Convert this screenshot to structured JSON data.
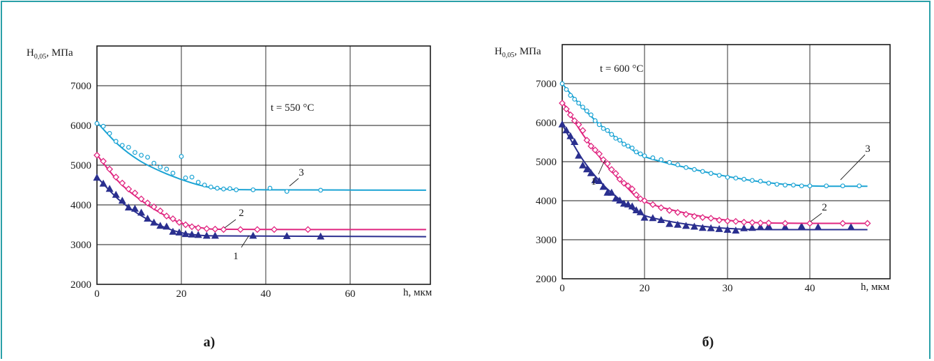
{
  "chart_data": [
    {
      "type": "scatter",
      "panel_label": "а)",
      "ylabel_main": "H",
      "ylabel_sub": "0,05",
      "ylabel_unit": ", МПа",
      "xlabel": "h, мкм",
      "annotation": "t = 550 °C",
      "xlim": [
        0,
        80
      ],
      "ylim": [
        2000,
        8000
      ],
      "x_ticks": [
        "0",
        "20",
        "40",
        "60"
      ],
      "y_ticks": [
        "2000",
        "3000",
        "4000",
        "5000",
        "6000",
        "7000"
      ],
      "grid": true,
      "series": [
        {
          "name": "1",
          "marker": "triangle",
          "color": "#2a2f8f",
          "points": [
            [
              0,
              4680
            ],
            [
              1.5,
              4530
            ],
            [
              3,
              4400
            ],
            [
              4.5,
              4250
            ],
            [
              6,
              4100
            ],
            [
              7.5,
              3930
            ],
            [
              9,
              3900
            ],
            [
              10.5,
              3800
            ],
            [
              12,
              3650
            ],
            [
              13.5,
              3550
            ],
            [
              15,
              3470
            ],
            [
              16.5,
              3450
            ],
            [
              18,
              3320
            ],
            [
              19.5,
              3300
            ],
            [
              21,
              3260
            ],
            [
              22.5,
              3250
            ],
            [
              24,
              3240
            ],
            [
              26,
              3220
            ],
            [
              28,
              3220
            ],
            [
              37,
              3220
            ],
            [
              45,
              3210
            ],
            [
              53,
              3200
            ]
          ],
          "curve": [
            [
              0,
              4700
            ],
            [
              5,
              4150
            ],
            [
              10,
              3760
            ],
            [
              15,
              3480
            ],
            [
              20,
              3300
            ],
            [
              25,
              3230
            ],
            [
              30,
              3220
            ],
            [
              50,
              3210
            ],
            [
              78,
              3200
            ]
          ]
        },
        {
          "name": "2",
          "marker": "diamond",
          "color": "#e0247f",
          "points": [
            [
              0,
              5250
            ],
            [
              1.5,
              5100
            ],
            [
              3,
              4900
            ],
            [
              4.5,
              4700
            ],
            [
              6,
              4550
            ],
            [
              7.5,
              4400
            ],
            [
              9,
              4300
            ],
            [
              10.5,
              4150
            ],
            [
              12,
              4050
            ],
            [
              13.5,
              3950
            ],
            [
              15,
              3850
            ],
            [
              16.5,
              3720
            ],
            [
              18,
              3650
            ],
            [
              19.5,
              3560
            ],
            [
              21,
              3500
            ],
            [
              22.5,
              3450
            ],
            [
              24,
              3420
            ],
            [
              26,
              3400
            ],
            [
              28,
              3390
            ],
            [
              30,
              3380
            ],
            [
              34,
              3380
            ],
            [
              38,
              3380
            ],
            [
              42,
              3380
            ],
            [
              50,
              3380
            ]
          ],
          "curve": [
            [
              0,
              5260
            ],
            [
              5,
              4600
            ],
            [
              10,
              4150
            ],
            [
              15,
              3800
            ],
            [
              20,
              3540
            ],
            [
              25,
              3420
            ],
            [
              30,
              3385
            ],
            [
              50,
              3380
            ],
            [
              78,
              3380
            ]
          ]
        },
        {
          "name": "3",
          "marker": "circle",
          "color": "#1aa3d4",
          "points": [
            [
              0,
              6050
            ],
            [
              1.5,
              5980
            ],
            [
              3,
              5800
            ],
            [
              4.5,
              5600
            ],
            [
              6,
              5500
            ],
            [
              7.5,
              5450
            ],
            [
              9,
              5320
            ],
            [
              10.5,
              5250
            ],
            [
              12,
              5200
            ],
            [
              13.5,
              5050
            ],
            [
              15,
              4950
            ],
            [
              16.5,
              4900
            ],
            [
              18,
              4800
            ],
            [
              20,
              5220
            ],
            [
              21,
              4680
            ],
            [
              22.5,
              4700
            ],
            [
              24,
              4570
            ],
            [
              25.5,
              4500
            ],
            [
              27,
              4450
            ],
            [
              28.5,
              4420
            ],
            [
              30,
              4400
            ],
            [
              31.5,
              4410
            ],
            [
              33,
              4380
            ],
            [
              37,
              4380
            ],
            [
              41,
              4420
            ],
            [
              45,
              4340
            ],
            [
              53,
              4370
            ]
          ],
          "curve": [
            [
              0,
              6080
            ],
            [
              5,
              5520
            ],
            [
              10,
              5120
            ],
            [
              15,
              4850
            ],
            [
              20,
              4640
            ],
            [
              25,
              4480
            ],
            [
              30,
              4400
            ],
            [
              40,
              4380
            ],
            [
              78,
              4370
            ]
          ]
        }
      ],
      "curve_labels": [
        "1",
        "2",
        "3"
      ]
    },
    {
      "type": "scatter",
      "panel_label": "б)",
      "ylabel_main": "H",
      "ylabel_sub": "0,05",
      "ylabel_unit": ", МПа",
      "xlabel": "h, мкм",
      "annotation": "t = 600 °C",
      "xlim": [
        0,
        50
      ],
      "ylim": [
        2000,
        7000
      ],
      "x_ticks": [
        "0",
        "20",
        "30",
        "40"
      ],
      "y_ticks": [
        "2000",
        "3000",
        "4000",
        "5000",
        "6000",
        "7000"
      ],
      "grid": true,
      "series": [
        {
          "name": "1",
          "marker": "triangle",
          "color": "#2a2f8f",
          "points": [
            [
              0,
              5950
            ],
            [
              1,
              5800
            ],
            [
              2,
              5650
            ],
            [
              3,
              5500
            ],
            [
              4,
              5150
            ],
            [
              5,
              4900
            ],
            [
              6,
              4800
            ],
            [
              7,
              4700
            ],
            [
              8,
              4520
            ],
            [
              9,
              4500
            ],
            [
              10,
              4350
            ],
            [
              11,
              4200
            ],
            [
              12,
              4200
            ],
            [
              13,
              4050
            ],
            [
              14,
              4000
            ],
            [
              15,
              3920
            ],
            [
              16,
              3900
            ],
            [
              17,
              3850
            ],
            [
              18,
              3750
            ],
            [
              19,
              3700
            ],
            [
              20,
              3560
            ],
            [
              21,
              3550
            ],
            [
              22,
              3500
            ],
            [
              23,
              3400
            ],
            [
              24,
              3380
            ],
            [
              25,
              3350
            ],
            [
              26,
              3330
            ],
            [
              27,
              3300
            ],
            [
              28,
              3290
            ],
            [
              29,
              3270
            ],
            [
              30,
              3250
            ],
            [
              31,
              3230
            ],
            [
              32,
              3290
            ],
            [
              33,
              3300
            ],
            [
              34,
              3320
            ],
            [
              35,
              3340
            ],
            [
              37,
              3320
            ],
            [
              39,
              3340
            ],
            [
              41,
              3320
            ],
            [
              45,
              3320
            ]
          ],
          "curve": [
            [
              0,
              5950
            ],
            [
              5,
              5050
            ],
            [
              10,
              4400
            ],
            [
              15,
              3950
            ],
            [
              20,
              3620
            ],
            [
              25,
              3400
            ],
            [
              30,
              3290
            ],
            [
              35,
              3260
            ],
            [
              47,
              3260
            ]
          ]
        },
        {
          "name": "2",
          "marker": "diamond",
          "color": "#e0247f",
          "points": [
            [
              0,
              6500
            ],
            [
              1,
              6350
            ],
            [
              2,
              6200
            ],
            [
              3,
              6050
            ],
            [
              4,
              5950
            ],
            [
              5,
              5800
            ],
            [
              6,
              5550
            ],
            [
              7,
              5400
            ],
            [
              8,
              5300
            ],
            [
              9,
              5200
            ],
            [
              10,
              5050
            ],
            [
              11,
              4950
            ],
            [
              12,
              4800
            ],
            [
              13,
              4700
            ],
            [
              14,
              4550
            ],
            [
              15,
              4450
            ],
            [
              16,
              4380
            ],
            [
              17,
              4300
            ],
            [
              18,
              4150
            ],
            [
              19,
              4050
            ],
            [
              20,
              4000
            ],
            [
              21,
              3900
            ],
            [
              22,
              3820
            ],
            [
              23,
              3750
            ],
            [
              24,
              3700
            ],
            [
              25,
              3650
            ],
            [
              26,
              3600
            ],
            [
              27,
              3570
            ],
            [
              28,
              3550
            ],
            [
              29,
              3500
            ],
            [
              30,
              3480
            ],
            [
              31,
              3470
            ],
            [
              32,
              3450
            ],
            [
              33,
              3440
            ],
            [
              34,
              3430
            ],
            [
              35,
              3430
            ],
            [
              37,
              3420
            ],
            [
              40,
              3420
            ],
            [
              44,
              3420
            ],
            [
              47,
              3420
            ]
          ],
          "curve": [
            [
              0,
              6550
            ],
            [
              5,
              5700
            ],
            [
              10,
              5000
            ],
            [
              15,
              4420
            ],
            [
              20,
              3980
            ],
            [
              25,
              3680
            ],
            [
              30,
              3500
            ],
            [
              35,
              3430
            ],
            [
              47,
              3420
            ]
          ]
        },
        {
          "name": "3",
          "marker": "circle",
          "color": "#1aa3d4",
          "points": [
            [
              0,
              7000
            ],
            [
              1,
              6850
            ],
            [
              2,
              6700
            ],
            [
              3,
              6600
            ],
            [
              4,
              6500
            ],
            [
              5,
              6400
            ],
            [
              6,
              6300
            ],
            [
              7,
              6200
            ],
            [
              8,
              6050
            ],
            [
              9,
              5950
            ],
            [
              10,
              5850
            ],
            [
              11,
              5800
            ],
            [
              12,
              5700
            ],
            [
              13,
              5600
            ],
            [
              14,
              5550
            ],
            [
              15,
              5450
            ],
            [
              16,
              5400
            ],
            [
              17,
              5350
            ],
            [
              18,
              5250
            ],
            [
              19,
              5200
            ],
            [
              20,
              5150
            ],
            [
              21,
              5100
            ],
            [
              22,
              5050
            ],
            [
              23,
              4980
            ],
            [
              24,
              4920
            ],
            [
              25,
              4850
            ],
            [
              26,
              4800
            ],
            [
              27,
              4750
            ],
            [
              28,
              4700
            ],
            [
              29,
              4650
            ],
            [
              30,
              4600
            ],
            [
              31,
              4580
            ],
            [
              32,
              4550
            ],
            [
              33,
              4520
            ],
            [
              34,
              4500
            ],
            [
              35,
              4450
            ],
            [
              36,
              4420
            ],
            [
              37,
              4400
            ],
            [
              38,
              4400
            ],
            [
              39,
              4380
            ],
            [
              40,
              4380
            ],
            [
              42,
              4380
            ],
            [
              44,
              4380
            ],
            [
              46,
              4380
            ]
          ],
          "curve": [
            [
              0,
              7000
            ],
            [
              5,
              6380
            ],
            [
              10,
              5870
            ],
            [
              15,
              5470
            ],
            [
              20,
              5130
            ],
            [
              25,
              4850
            ],
            [
              30,
              4620
            ],
            [
              35,
              4460
            ],
            [
              40,
              4380
            ],
            [
              47,
              4370
            ]
          ]
        }
      ],
      "curve_labels": [
        "1",
        "2",
        "3"
      ]
    }
  ]
}
